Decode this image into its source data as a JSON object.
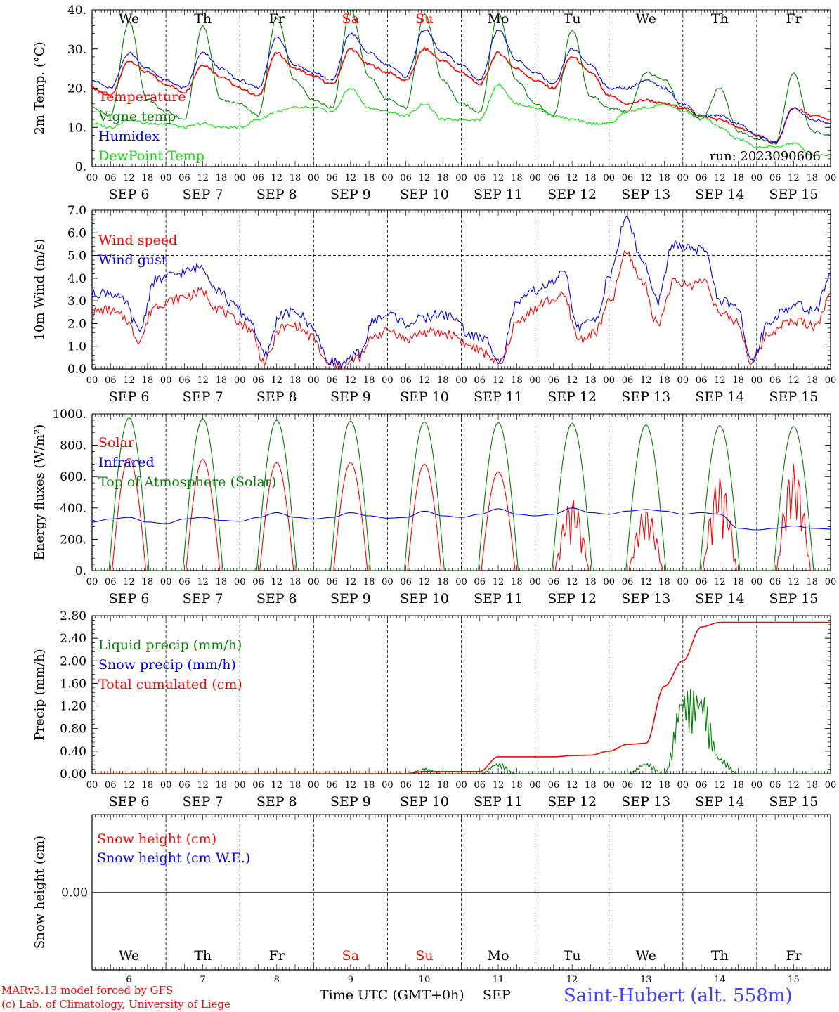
{
  "colors": {
    "temperature": "#ff0000",
    "vigne": "#008000",
    "humidex": "#0000ff",
    "dewpoint": "#00e000",
    "weekend": "#ff0000",
    "station": "#4040ff",
    "snow_line": "#7020a0"
  },
  "day_labels": [
    "We",
    "Th",
    "Fr",
    "Sa",
    "Su",
    "Mo",
    "Tu",
    "We",
    "Th",
    "Fr"
  ],
  "weekend_day_indices": [
    3,
    4
  ],
  "date_labels": [
    "SEP  6",
    "SEP  7",
    "SEP  8",
    "SEP  9",
    "SEP 10",
    "SEP 11",
    "SEP 12",
    "SEP 13",
    "SEP 14",
    "SEP 15"
  ],
  "hour_ticks": [
    "00",
    "06",
    "12",
    "18"
  ],
  "hour_end": "00",
  "bottom_day_numbers": [
    "6",
    "7",
    "8",
    "9",
    "10",
    "11",
    "12",
    "13",
    "14",
    "15"
  ],
  "run_label": "run: 2023090606",
  "x_axis_title": "Time UTC (GMT+0h)",
  "x_axis_month": "SEP",
  "footer": {
    "model": "MARv3.13 model forced by GFS",
    "credit": "(c) Lab. of Climatology, University of Liege",
    "station": "Saint-Hubert (alt. 558m)"
  },
  "chart_data": [
    {
      "id": "temp",
      "type": "line",
      "ylabel": "2m Temp. (°C)",
      "ylim": [
        0,
        40
      ],
      "yticks": [
        "0.",
        "10.",
        "20.",
        "30.",
        "40."
      ],
      "x_days": 10,
      "x_start": "2023-09-06 00:00 UTC",
      "x_step_hours": 6,
      "series": [
        {
          "name": "Temperature",
          "color_key": "temperature",
          "values": [
            20,
            18,
            27,
            24,
            21,
            19,
            26,
            23,
            20,
            18,
            29,
            25,
            23,
            21,
            30,
            26,
            24,
            22,
            30,
            27,
            24,
            21,
            29,
            25,
            22,
            20,
            28,
            24,
            18,
            16,
            17,
            16,
            15,
            13,
            12,
            10,
            8,
            6,
            15,
            13,
            12
          ]
        },
        {
          "name": "Vigne temp",
          "color_key": "vigne",
          "values": [
            15,
            13,
            37,
            17,
            14,
            12,
            36,
            17,
            16,
            13,
            38,
            22,
            17,
            15,
            40,
            23,
            17,
            15,
            39,
            22,
            16,
            14,
            39,
            22,
            16,
            13,
            35,
            18,
            15,
            14,
            24,
            22,
            15,
            12,
            20,
            9,
            7,
            6,
            24,
            9,
            8
          ]
        },
        {
          "name": "Humidex",
          "color_key": "humidex",
          "values": [
            22,
            20,
            29,
            25,
            22,
            20,
            29,
            25,
            22,
            20,
            33,
            26,
            24,
            22,
            34,
            29,
            26,
            23,
            35,
            29,
            26,
            22,
            35,
            27,
            24,
            21,
            30,
            26,
            20,
            20,
            22,
            20,
            16,
            13,
            13,
            11,
            8,
            6,
            15,
            12,
            11
          ]
        },
        {
          "name": "DewPoint Temp",
          "color_key": "dewpoint",
          "values": [
            11,
            10,
            12,
            11,
            11,
            10,
            11,
            10,
            10,
            12,
            14,
            15,
            15,
            14,
            20,
            15,
            14,
            13,
            16,
            12,
            12,
            12,
            21,
            16,
            15,
            13,
            12,
            11,
            11,
            14,
            15,
            16,
            14,
            13,
            10,
            7,
            5,
            5,
            6,
            3,
            3
          ]
        }
      ]
    },
    {
      "id": "wind",
      "type": "line",
      "ylabel": "10m Wind (m/s)",
      "ylim": [
        0,
        7
      ],
      "yticks": [
        "0.0",
        "1.0",
        "2.0",
        "3.0",
        "4.0",
        "5.0",
        "6.0",
        "7.0"
      ],
      "reference_line": 5,
      "x_days": 10,
      "x_start": "2023-09-06 00:00 UTC",
      "x_step_hours": 6,
      "series": [
        {
          "name": "Wind speed",
          "color_key": "temperature",
          "values": [
            2.5,
            2.6,
            2.3,
            1.3,
            2.8,
            3.0,
            3.2,
            3.4,
            2.7,
            2.2,
            1.8,
            0.3,
            1.8,
            1.9,
            1.4,
            0.2,
            0.1,
            0.5,
            1.5,
            1.7,
            1.3,
            1.6,
            1.6,
            1.5,
            1.0,
            0.7,
            0.2,
            2.0,
            2.6,
            3.0,
            3.2,
            1.3,
            1.6,
            3.0,
            5.1,
            3.9,
            2.0,
            3.8,
            3.7,
            3.9,
            2.4,
            2.1,
            0.3,
            1.5,
            2.0,
            2.1,
            1.9,
            3.2
          ]
        },
        {
          "name": "Wind gust",
          "color_key": "humidex",
          "values": [
            3.3,
            3.4,
            3.0,
            1.7,
            3.9,
            4.1,
            4.3,
            4.5,
            3.5,
            2.8,
            2.2,
            0.6,
            2.4,
            2.5,
            1.9,
            0.4,
            0.2,
            0.7,
            2.2,
            2.4,
            2.0,
            2.2,
            2.4,
            2.3,
            1.5,
            1.3,
            0.4,
            2.8,
            3.4,
            3.7,
            4.2,
            1.8,
            2.2,
            4.2,
            6.7,
            4.8,
            3.0,
            5.5,
            5.3,
            5.2,
            3.0,
            2.7,
            0.4,
            2.0,
            2.6,
            2.8,
            2.5,
            4.2
          ]
        }
      ]
    },
    {
      "id": "energy",
      "type": "line",
      "ylabel": "Energy fluxes (W/m²)",
      "ylim": [
        0,
        1000
      ],
      "yticks": [
        "0.",
        "200.",
        "400.",
        "600.",
        "800.",
        "1000."
      ],
      "x_days": 10,
      "series": [
        {
          "name": "Solar",
          "color_key": "temperature",
          "daily_peak": [
            720,
            710,
            690,
            690,
            680,
            630,
            460,
            400,
            600,
            680
          ]
        },
        {
          "name": "Infrared",
          "color_key": "humidex",
          "values": [
            310,
            330,
            340,
            310,
            300,
            330,
            340,
            320,
            315,
            340,
            370,
            340,
            330,
            340,
            370,
            350,
            335,
            340,
            380,
            350,
            340,
            360,
            395,
            360,
            350,
            360,
            400,
            370,
            360,
            380,
            390,
            380,
            360,
            370,
            360,
            270,
            260,
            270,
            285,
            270,
            265
          ]
        },
        {
          "name": "Top of Atmosphere (Solar)",
          "color_key": "vigne",
          "daily_peak": [
            975,
            970,
            960,
            955,
            950,
            945,
            940,
            930,
            925,
            920
          ]
        }
      ]
    },
    {
      "id": "precip",
      "type": "line",
      "ylabel": "Precip (mm/h)",
      "ylim": [
        0,
        2.8
      ],
      "yticks": [
        "0.00",
        "0.40",
        "0.80",
        "1.20",
        "1.60",
        "2.00",
        "2.40",
        "2.80"
      ],
      "x_days": 10,
      "series": [
        {
          "name": "Liquid precip (mm/h)",
          "color_key": "vigne",
          "values": [
            0,
            0,
            0,
            0,
            0,
            0,
            0,
            0,
            0,
            0,
            0,
            0,
            0,
            0,
            0,
            0,
            0,
            0,
            0.1,
            0,
            0,
            0,
            0.2,
            0,
            0,
            0,
            0,
            0,
            0,
            0,
            0.2,
            0,
            1.5,
            1.5,
            0.3,
            0,
            0,
            0,
            0,
            0,
            0
          ]
        },
        {
          "name": "Snow precip (mm/h)",
          "color_key": "humidex",
          "values": []
        },
        {
          "name": "Total cumulated (cm)",
          "color_key": "temperature",
          "values": [
            0,
            0,
            0,
            0,
            0,
            0,
            0,
            0,
            0,
            0,
            0,
            0,
            0,
            0,
            0,
            0,
            0,
            0,
            0.04,
            0.04,
            0.04,
            0.04,
            0.3,
            0.3,
            0.3,
            0.3,
            0.32,
            0.33,
            0.4,
            0.52,
            0.54,
            1.55,
            2.0,
            2.6,
            2.68,
            2.68,
            2.68,
            2.68,
            2.68,
            2.68,
            2.68
          ]
        }
      ]
    },
    {
      "id": "snow",
      "type": "line",
      "ylabel": "Snow height (cm)",
      "ylim": [
        -1,
        1
      ],
      "yticks": [
        "0.00"
      ],
      "x_days": 10,
      "series": [
        {
          "name": "Snow height (cm)",
          "color_key": "temperature",
          "values": [
            0,
            0
          ]
        },
        {
          "name": "Snow height (cm W.E.)",
          "color_key": "humidex",
          "values": [
            0,
            0
          ]
        }
      ]
    }
  ]
}
